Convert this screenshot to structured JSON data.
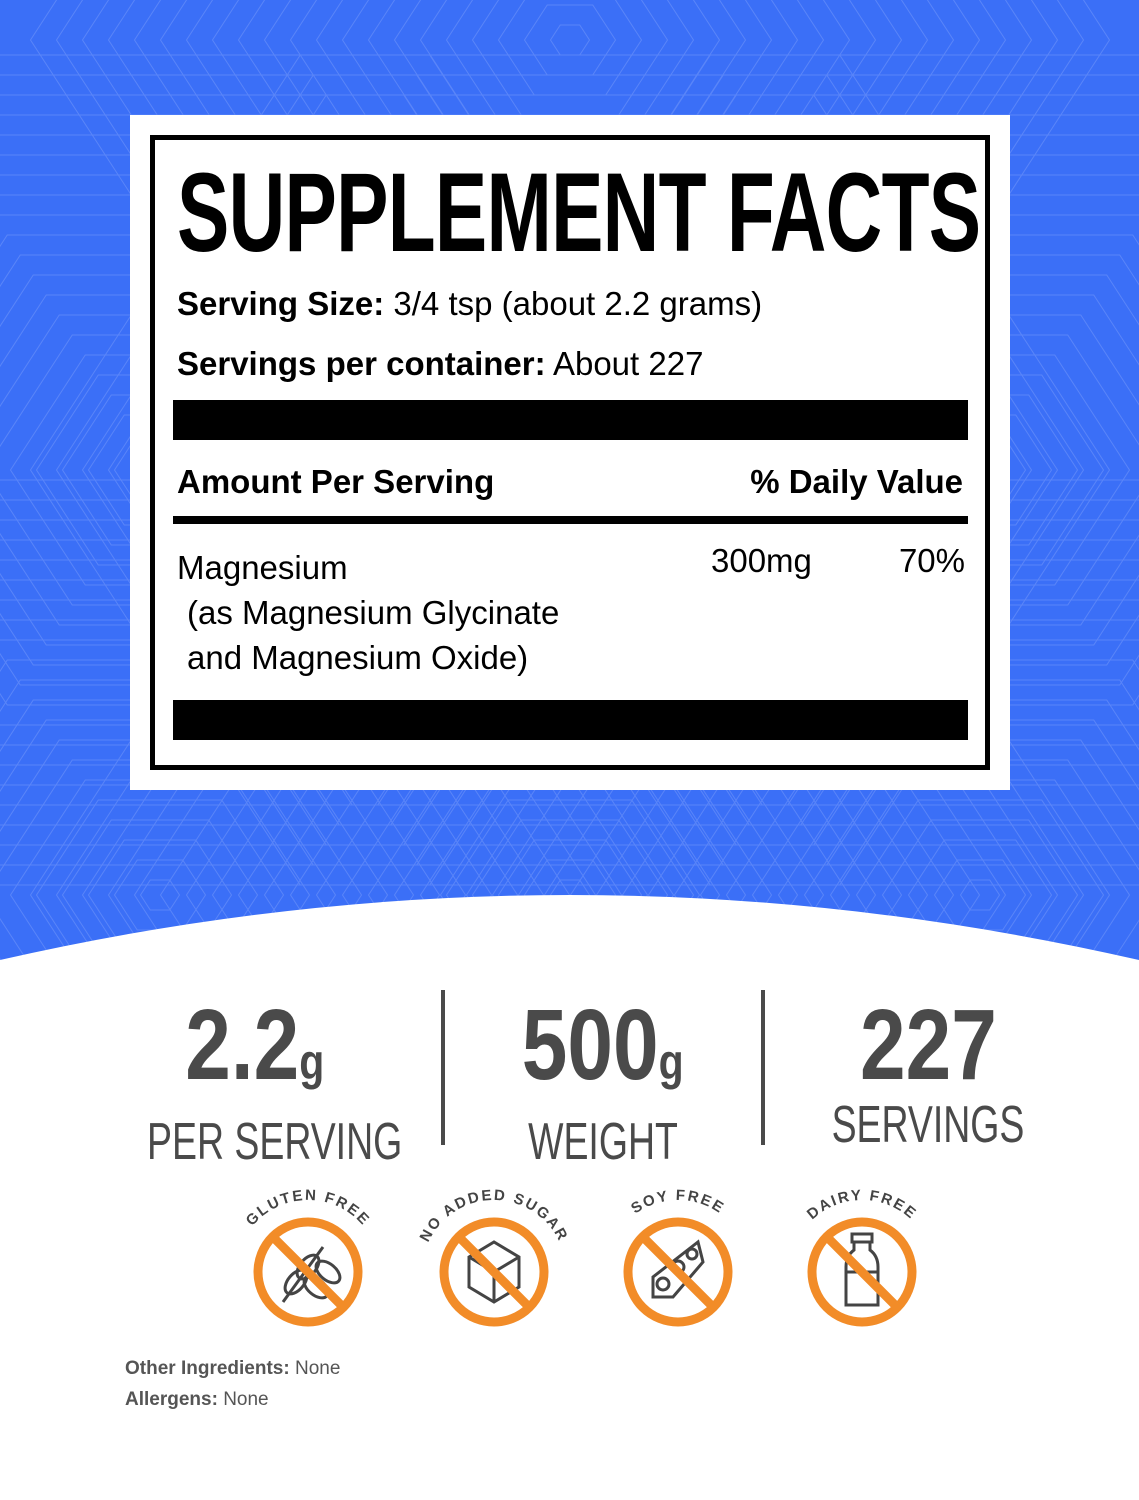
{
  "colors": {
    "background_blue": "#3b6ff7",
    "badge_orange": "#f28c28",
    "stat_gray": "#4a4a4a"
  },
  "facts": {
    "title": "SUPPLEMENT FACTS",
    "serving_size_label": "Serving Size:",
    "serving_size_value": "3/4 tsp (about 2.2 grams)",
    "servings_label": "Servings per container:",
    "servings_value": "About 227",
    "amount_header": "Amount Per Serving",
    "dv_header": "% Daily Value",
    "ingredient": {
      "name": "Magnesium",
      "detail_1": "(as Magnesium Glycinate",
      "detail_2": "and Magnesium Oxide)",
      "amount": "300mg",
      "dv": "70%"
    }
  },
  "stats": [
    {
      "value": "2.2",
      "unit": "g",
      "label": "PER SERVING"
    },
    {
      "value": "500",
      "unit": "g",
      "label": "WEIGHT"
    },
    {
      "value": "227",
      "unit": "",
      "label": "SERVINGS"
    }
  ],
  "badges": [
    {
      "label": "GLUTEN FREE",
      "icon": "wheat-icon"
    },
    {
      "label": "NO ADDED SUGAR",
      "icon": "sugar-cube-icon"
    },
    {
      "label": "SOY FREE",
      "icon": "soybean-icon"
    },
    {
      "label": "DAIRY FREE",
      "icon": "milk-bottle-icon"
    }
  ],
  "footer": {
    "other_label": "Other Ingredients:",
    "other_value": "None",
    "allergens_label": "Allergens:",
    "allergens_value": "None"
  }
}
